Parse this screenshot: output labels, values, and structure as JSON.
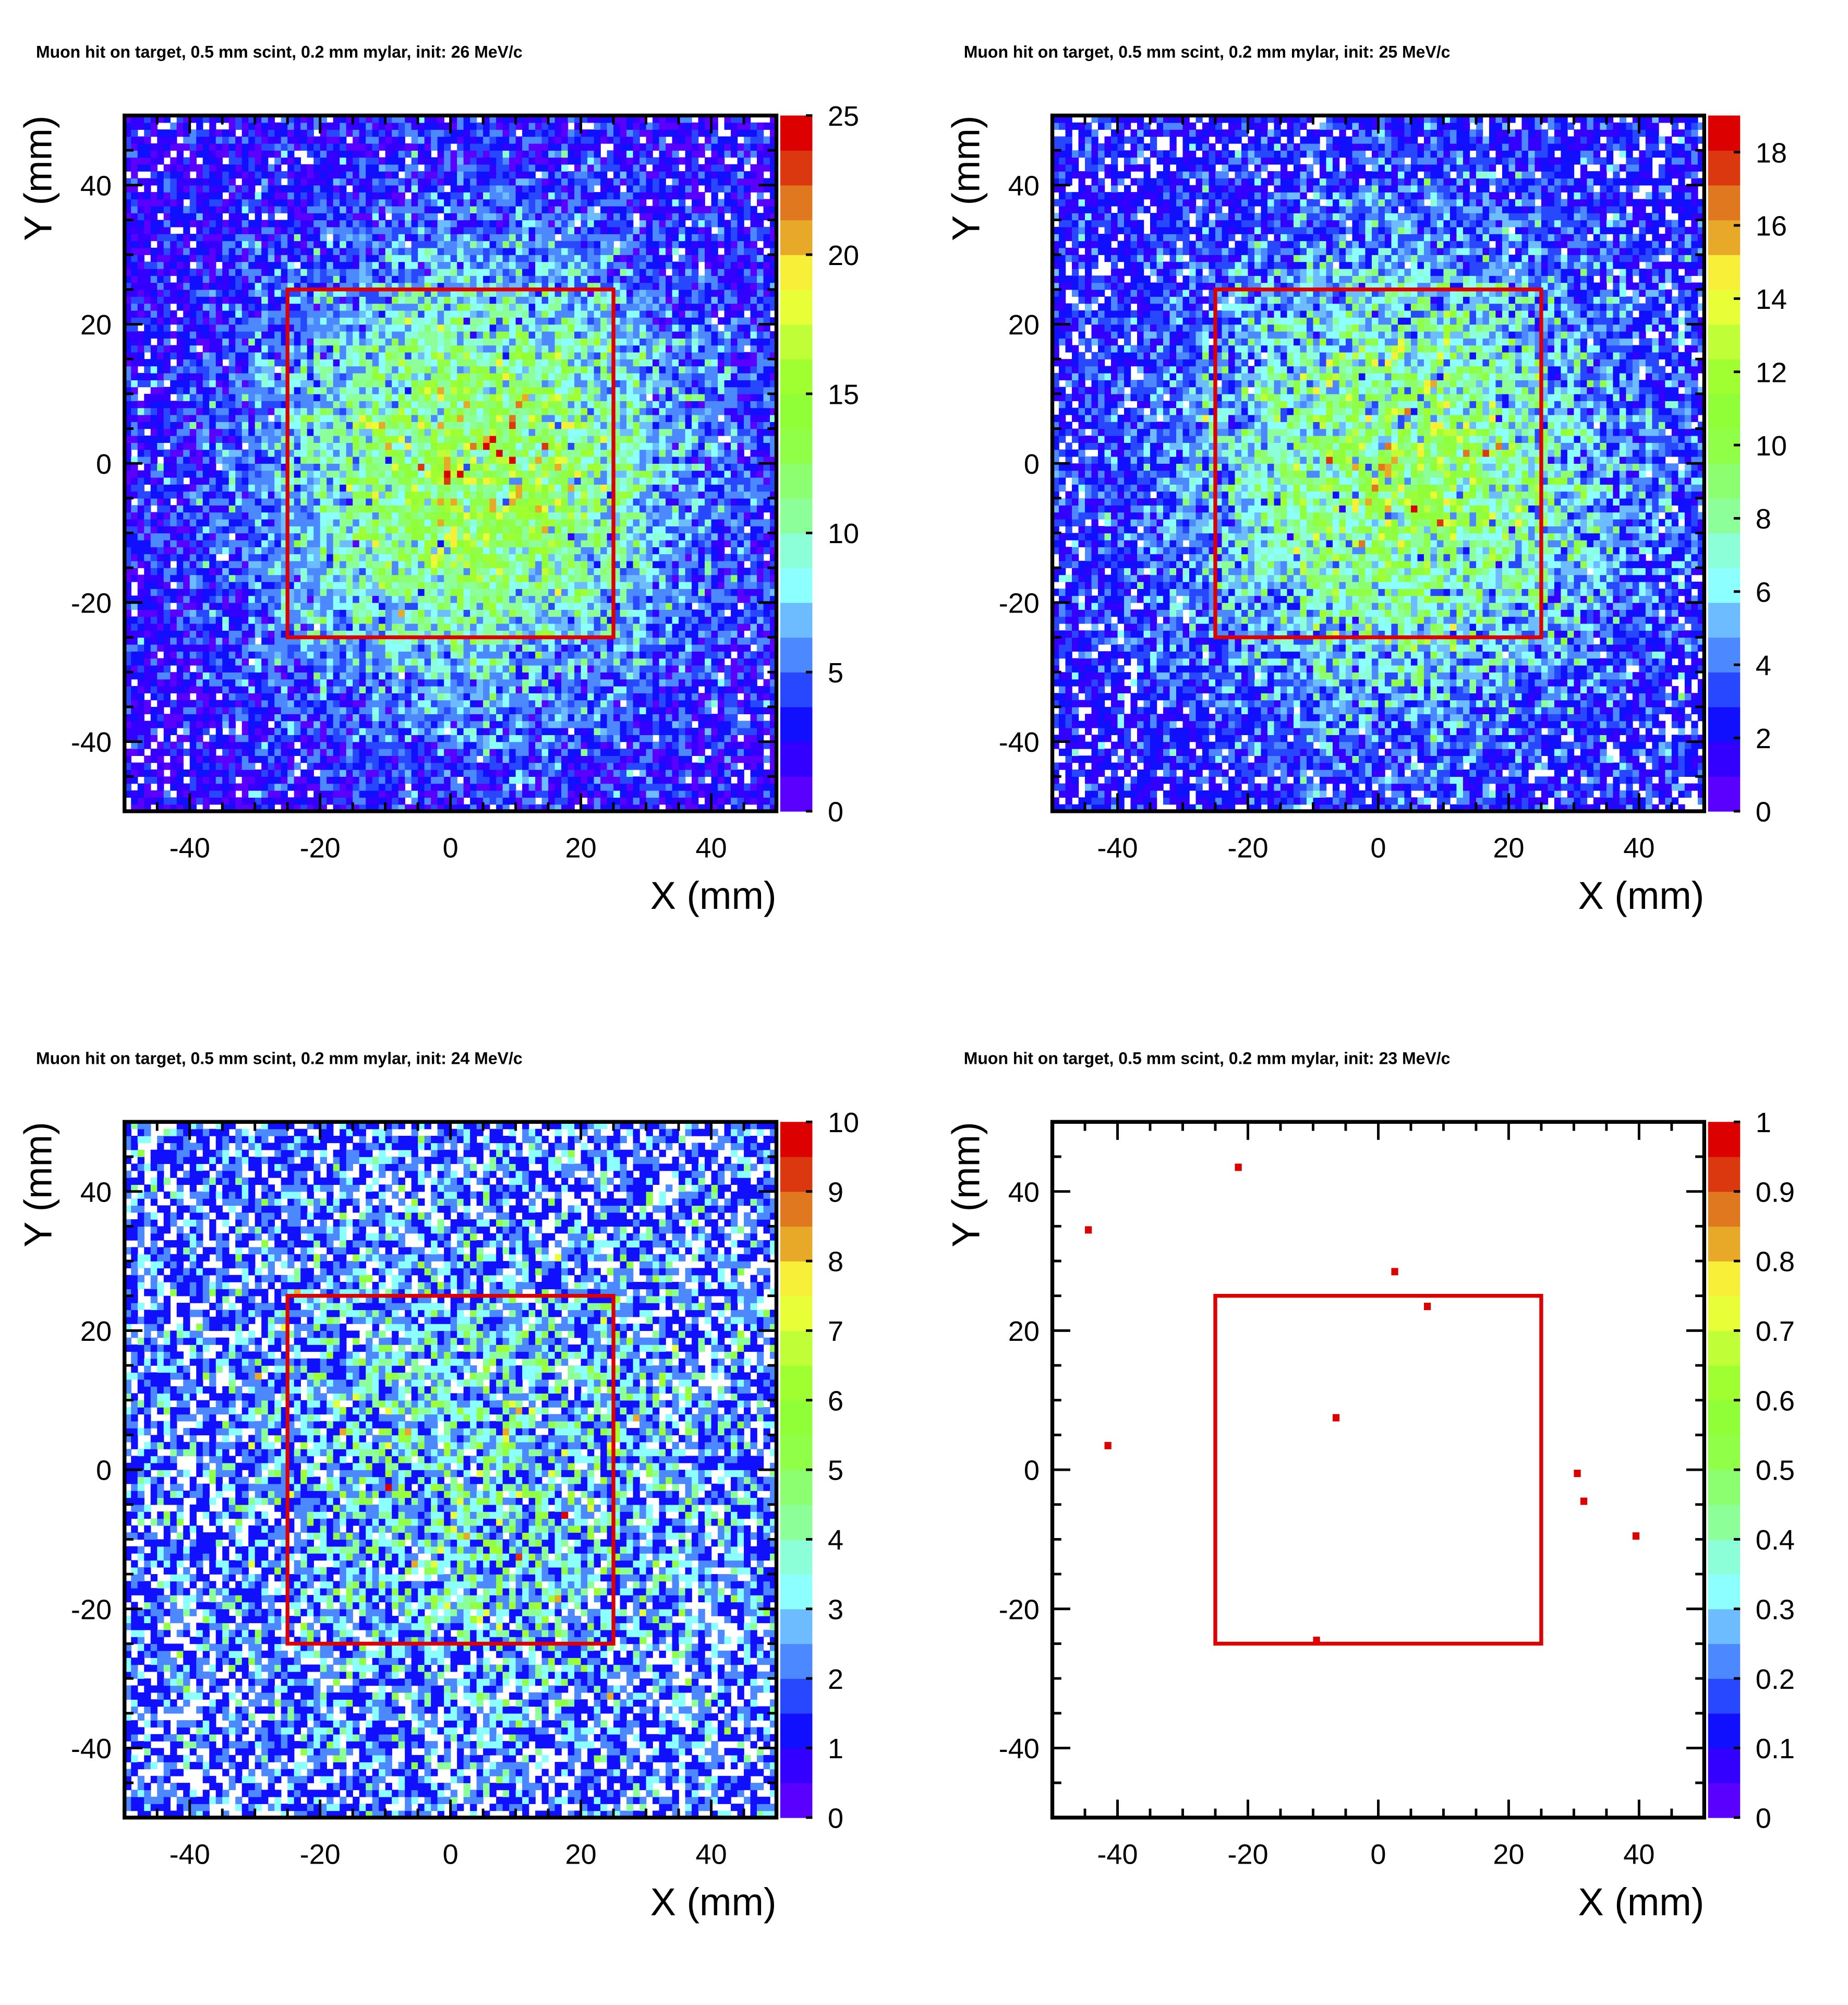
{
  "palette": [
    "#5a00ff",
    "#3300ff",
    "#1010ff",
    "#2848ff",
    "#4c88ff",
    "#6cbcff",
    "#8cffff",
    "#8cffd8",
    "#8cff98",
    "#8cff70",
    "#90ff48",
    "#90ff38",
    "#a0ff30",
    "#c0ff38",
    "#e8ff38",
    "#f8f038",
    "#e8a828",
    "#e07820",
    "#dc3810",
    "#dc0000"
  ],
  "overlay_color": "#dc0000",
  "chart_data": [
    {
      "type": "heatmap",
      "title": "Muon hit on target, 0.5 mm scint, 0.2 mm mylar, init: 26 MeV/c",
      "xlabel": "X (mm)",
      "ylabel": "Y (mm)",
      "xlim": [
        -50,
        50
      ],
      "ylim": [
        -50,
        50
      ],
      "zlim": [
        0,
        25
      ],
      "xticks": [
        "-40",
        "-20",
        "0",
        "20",
        "40"
      ],
      "yticks": [
        "-40",
        "-20",
        "0",
        "20",
        "40"
      ],
      "zticks": [
        "0",
        "5",
        "10",
        "15",
        "20",
        "25"
      ],
      "bins": [
        100,
        100
      ],
      "peak_counts_center": 14,
      "counts_edge": 2,
      "overlay_rectangle": {
        "x": [
          -25,
          25
        ],
        "y": [
          -25,
          25
        ]
      }
    },
    {
      "type": "heatmap",
      "title": "Muon hit on target, 0.5 mm scint, 0.2 mm mylar, init: 25 MeV/c",
      "xlabel": "X (mm)",
      "ylabel": "Y (mm)",
      "xlim": [
        -50,
        50
      ],
      "ylim": [
        -50,
        50
      ],
      "zlim": [
        0,
        19
      ],
      "xticks": [
        "-40",
        "-20",
        "0",
        "20",
        "40"
      ],
      "yticks": [
        "-40",
        "-20",
        "0",
        "20",
        "40"
      ],
      "zticks": [
        "0",
        "2",
        "4",
        "6",
        "8",
        "10",
        "12",
        "14",
        "16",
        "18"
      ],
      "bins": [
        100,
        100
      ],
      "peak_counts_center": 10,
      "counts_edge": 1.6,
      "overlay_rectangle": {
        "x": [
          -25,
          25
        ],
        "y": [
          -25,
          25
        ]
      }
    },
    {
      "type": "heatmap",
      "title": "Muon hit on target, 0.5 mm scint, 0.2 mm mylar, init: 24 MeV/c",
      "xlabel": "X (mm)",
      "ylabel": "Y (mm)",
      "xlim": [
        -50,
        50
      ],
      "ylim": [
        -50,
        50
      ],
      "zlim": [
        0,
        10
      ],
      "xticks": [
        "-40",
        "-20",
        "0",
        "20",
        "40"
      ],
      "yticks": [
        "-40",
        "-20",
        "0",
        "20",
        "40"
      ],
      "zticks": [
        "0",
        "1",
        "2",
        "3",
        "4",
        "5",
        "6",
        "7",
        "8",
        "9",
        "10"
      ],
      "bins": [
        100,
        100
      ],
      "peak_counts_center": 3,
      "counts_edge": 1.2,
      "overlay_rectangle": {
        "x": [
          -25,
          25
        ],
        "y": [
          -25,
          25
        ]
      }
    },
    {
      "type": "heatmap",
      "title": "Muon hit on target, 0.5 mm scint, 0.2 mm mylar, init: 23 MeV/c",
      "xlabel": "X (mm)",
      "ylabel": "Y (mm)",
      "xlim": [
        -50,
        50
      ],
      "ylim": [
        -50,
        50
      ],
      "zlim": [
        0,
        1
      ],
      "xticks": [
        "-40",
        "-20",
        "0",
        "20",
        "40"
      ],
      "yticks": [
        "-40",
        "-20",
        "0",
        "20",
        "40"
      ],
      "zticks": [
        "0",
        "0.1",
        "0.2",
        "0.3",
        "0.4",
        "0.5",
        "0.6",
        "0.7",
        "0.8",
        "0.9",
        "1"
      ],
      "bins": [
        100,
        100
      ],
      "points": [
        {
          "x": -44.5,
          "y": 34.7,
          "z": 1
        },
        {
          "x": -21.2,
          "y": 43.2,
          "z": 1
        },
        {
          "x": 2.1,
          "y": 28.0,
          "z": 1
        },
        {
          "x": 7.0,
          "y": 23.0,
          "z": 1
        },
        {
          "x": -7.0,
          "y": 7.9,
          "z": 1
        },
        {
          "x": -41.9,
          "y": 3.8,
          "z": 1
        },
        {
          "x": 30.5,
          "y": -0.5,
          "z": 1
        },
        {
          "x": 31.3,
          "y": -4.5,
          "z": 1
        },
        {
          "x": 39.5,
          "y": -9.5,
          "z": 1
        },
        {
          "x": -9.6,
          "y": -24.5,
          "z": 1
        }
      ],
      "overlay_rectangle": {
        "x": [
          -25,
          25
        ],
        "y": [
          -25,
          25
        ]
      }
    }
  ]
}
